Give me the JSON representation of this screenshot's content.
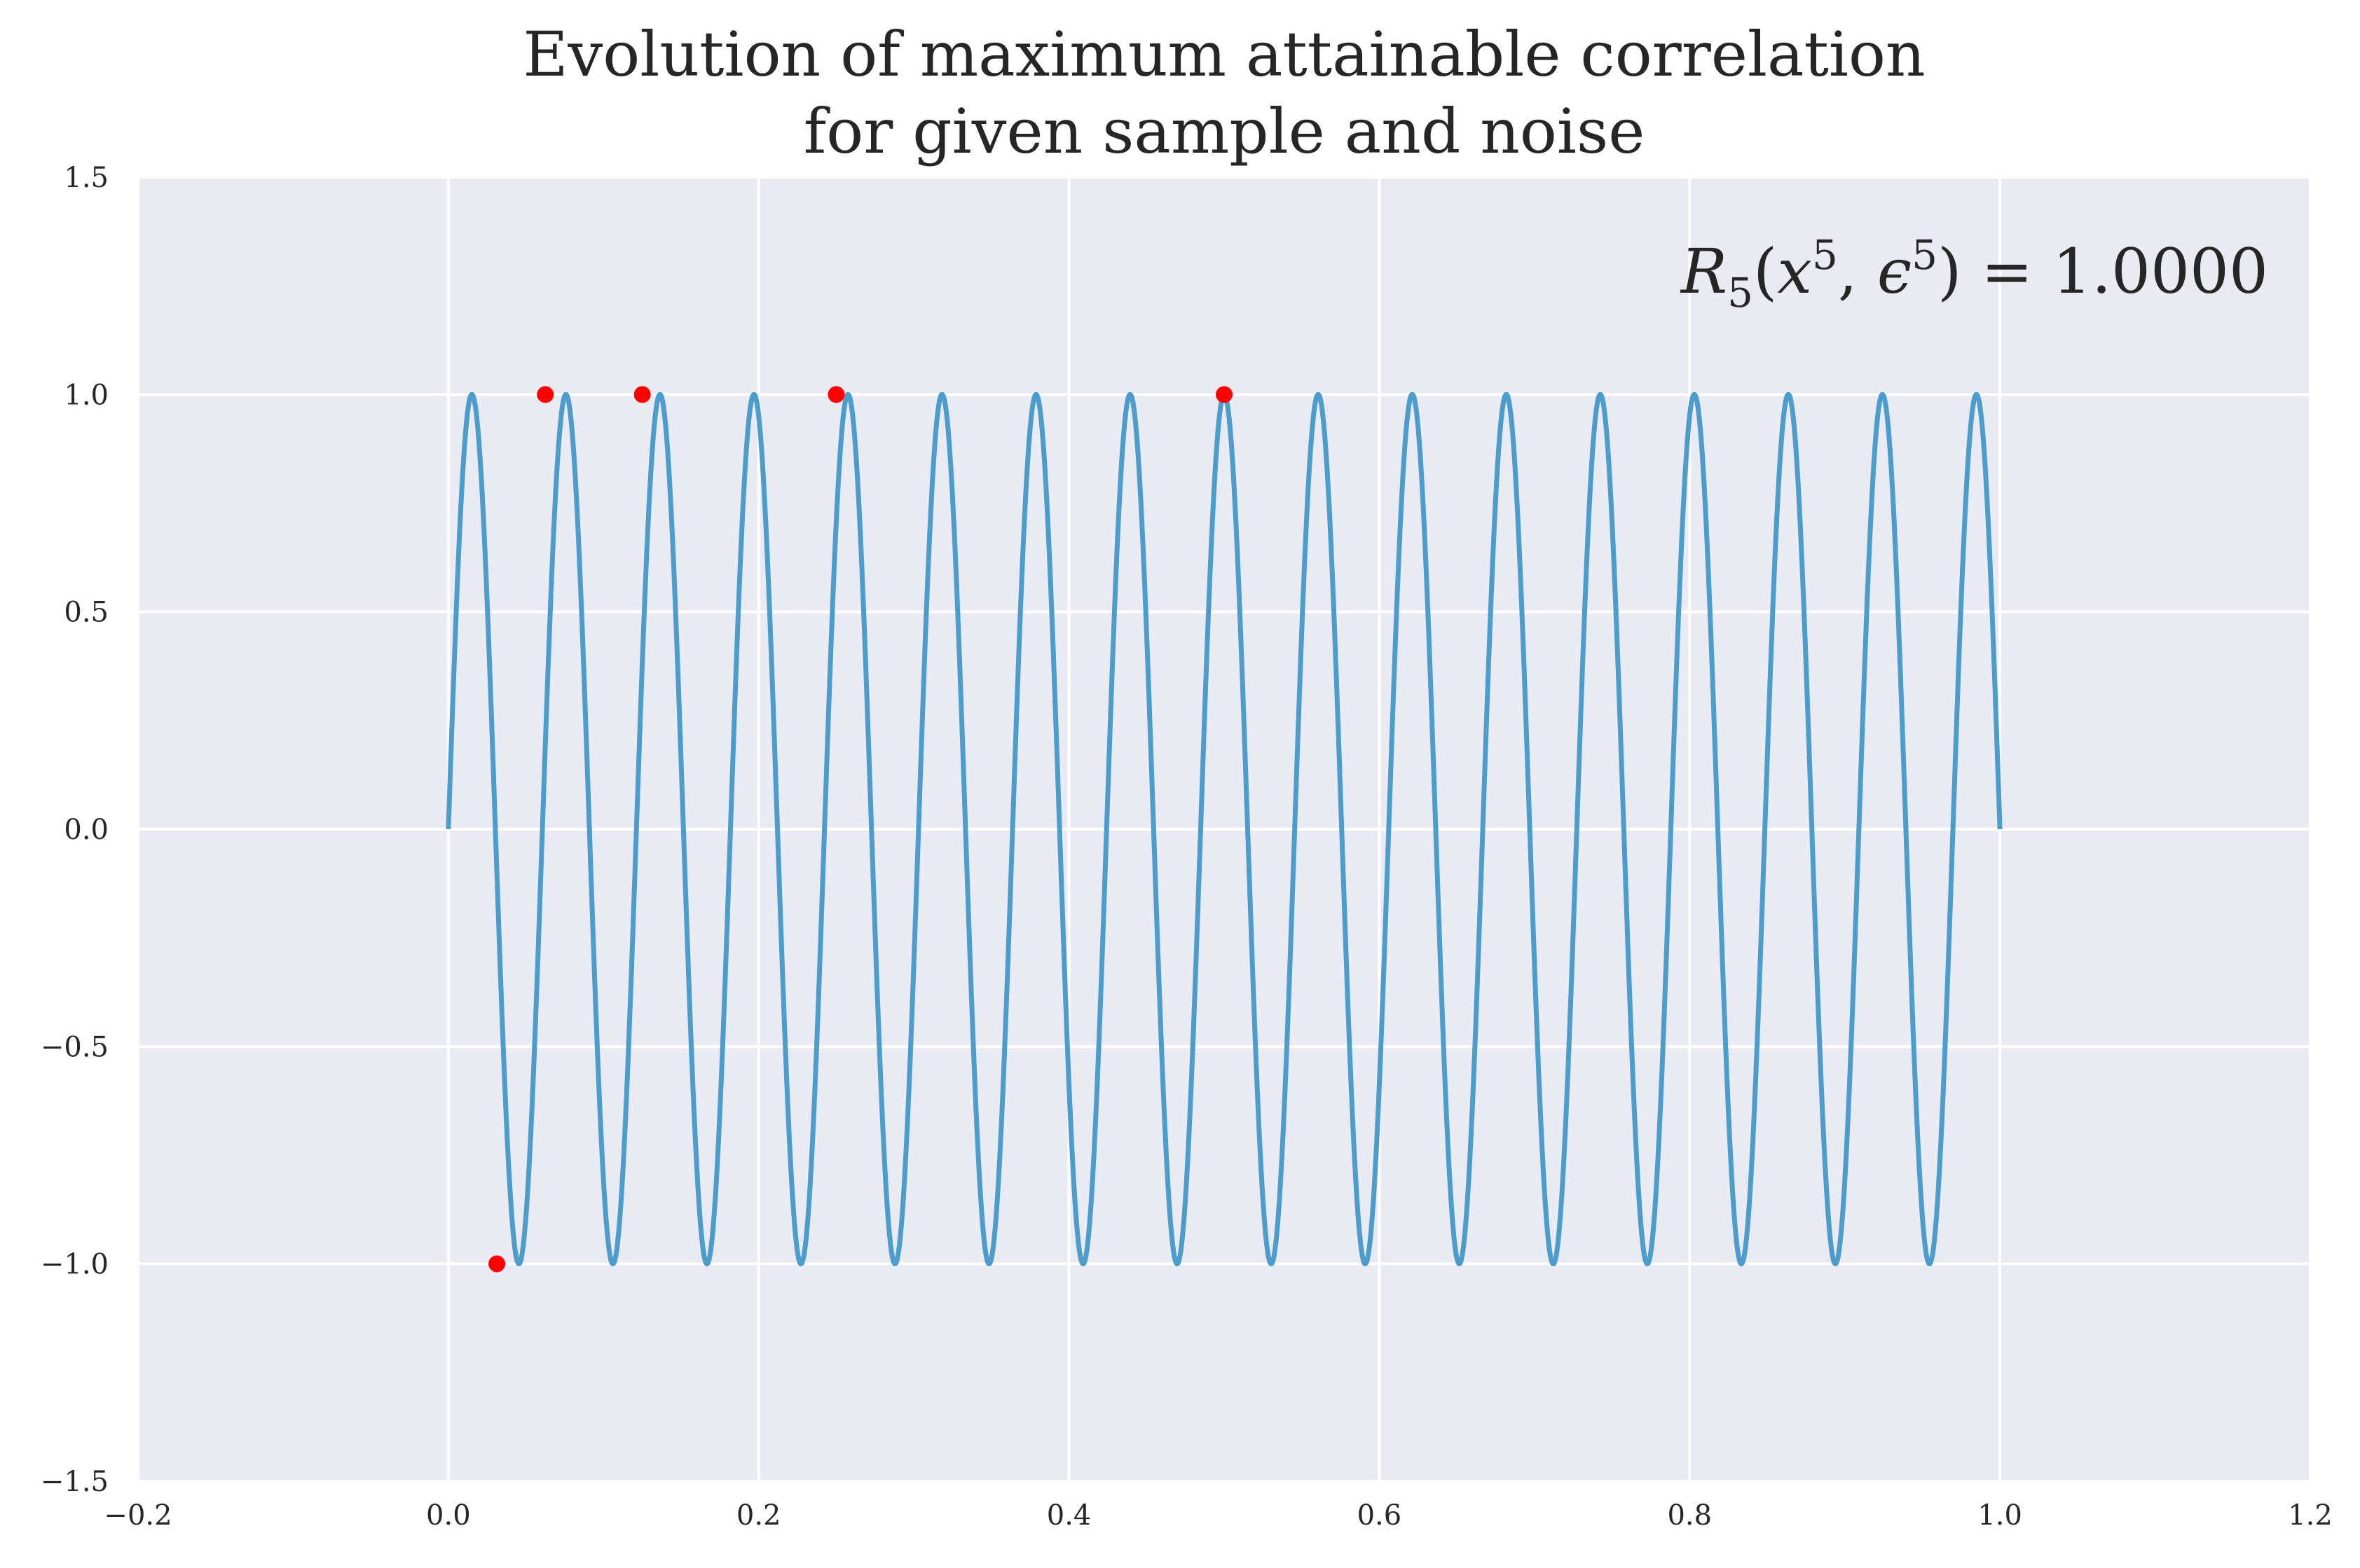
{
  "chart_data": {
    "type": "line",
    "title": [
      "Evolution of maximum attainable correlation",
      "for given sample and noise"
    ],
    "xlabel": "",
    "ylabel": "",
    "xlim": [
      -0.2,
      1.2
    ],
    "ylim": [
      -1.5,
      1.5
    ],
    "x_ticks": [
      -0.2,
      0.0,
      0.2,
      0.4,
      0.6,
      0.8,
      1.0,
      1.2
    ],
    "y_ticks": [
      -1.5,
      -1.0,
      -0.5,
      0.0,
      0.5,
      1.0,
      1.5
    ],
    "x_tick_labels": [
      "−0.2",
      "0.0",
      "0.2",
      "0.4",
      "0.6",
      "0.8",
      "1.0",
      "1.2"
    ],
    "y_tick_labels": [
      "−1.5",
      "−1.0",
      "−0.5",
      "0.0",
      "0.5",
      "1.0",
      "1.5"
    ],
    "grid": true,
    "background_color": "#eaeaf2",
    "grid_color": "#ffffff",
    "line_series": {
      "function": "sin(2*pi*16.5*x)",
      "x_range": [
        0.0,
        1.0
      ],
      "frequency": 16.5,
      "color": "#4c9dcb"
    },
    "points": {
      "color": "#ff0000",
      "x": [
        0.03125,
        0.0625,
        0.125,
        0.25,
        0.5
      ],
      "y": [
        -1.0,
        1.0,
        1.0,
        1.0,
        1.0
      ]
    },
    "annotation": {
      "R": "R",
      "R_sub": "5",
      "x": "x",
      "x_sup": "5",
      "comma": ", ",
      "eps": "ϵ",
      "eps_sup": "5",
      "eq": ") = ",
      "value": "1.0000",
      "open": "(",
      "close": ")"
    }
  }
}
